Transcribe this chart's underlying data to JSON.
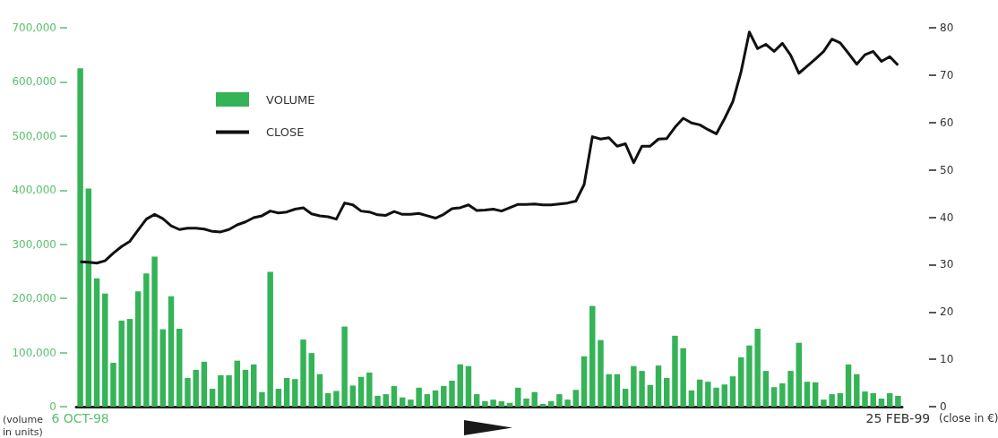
{
  "chart_data": {
    "type": "bar",
    "categories": [
      "6 OCT-98",
      null,
      null,
      null,
      null,
      null,
      null,
      null,
      null,
      null,
      null,
      null,
      null,
      null,
      null,
      null,
      null,
      null,
      null,
      null,
      null,
      null,
      null,
      null,
      null,
      null,
      null,
      null,
      null,
      null,
      null,
      null,
      null,
      null,
      null,
      null,
      null,
      null,
      null,
      null,
      null,
      null,
      null,
      null,
      null,
      null,
      null,
      null,
      null,
      null,
      null,
      null,
      null,
      null,
      null,
      null,
      null,
      null,
      null,
      null,
      null,
      null,
      null,
      null,
      null,
      null,
      null,
      null,
      null,
      null,
      null,
      null,
      null,
      null,
      null,
      null,
      null,
      null,
      null,
      null,
      null,
      null,
      null,
      null,
      null,
      null,
      null,
      null,
      null,
      null,
      null,
      null,
      null,
      null,
      null,
      null,
      null,
      null,
      null,
      "25 FEB-99"
    ],
    "series": [
      {
        "name": "VOLUME",
        "color": "#35b357",
        "values": [
          625000,
          403000,
          237000,
          209000,
          81000,
          159000,
          162000,
          213000,
          246000,
          277000,
          143000,
          204000,
          144000,
          53000,
          68000,
          83000,
          33000,
          58000,
          58000,
          85000,
          68000,
          78000,
          27000,
          249000,
          33000,
          53000,
          51000,
          124000,
          99000,
          60000,
          25000,
          29000,
          148000,
          39000,
          55000,
          63000,
          20000,
          23000,
          38000,
          17000,
          13000,
          35000,
          23000,
          30000,
          38000,
          48000,
          78000,
          75000,
          23000,
          10000,
          13000,
          10000,
          7000,
          35000,
          15000,
          27000,
          5000,
          10000,
          23000,
          13000,
          31000,
          93000,
          186000,
          123000,
          60000,
          60000,
          33000,
          75000,
          66000,
          40000,
          76000,
          53000,
          131000,
          108000,
          30000,
          50000,
          46000,
          35000,
          41000,
          56000,
          91000,
          113000,
          144000,
          66000,
          36000,
          43000,
          66000,
          118000,
          46000,
          45000,
          13000,
          23000,
          25000,
          78000,
          60000,
          28000,
          25000,
          15000,
          25000,
          20000
        ]
      },
      {
        "name": "CLOSE",
        "type": "line",
        "axis": "y2",
        "color": "#111111",
        "values": [
          30.6,
          30.5,
          30.3,
          30.8,
          32.4,
          33.8,
          34.9,
          37.3,
          39.6,
          40.6,
          39.7,
          38.2,
          37.4,
          37.7,
          37.7,
          37.5,
          37.0,
          36.9,
          37.4,
          38.4,
          39.0,
          39.9,
          40.3,
          41.3,
          40.9,
          41.1,
          41.7,
          42.0,
          40.7,
          40.3,
          40.1,
          39.6,
          43.0,
          42.6,
          41.3,
          41.1,
          40.5,
          40.4,
          41.2,
          40.6,
          40.6,
          40.8,
          40.3,
          39.8,
          40.6,
          41.8,
          42.0,
          42.6,
          41.4,
          41.5,
          41.7,
          41.3,
          42.0,
          42.7,
          42.7,
          42.8,
          42.6,
          42.6,
          42.8,
          43.0,
          43.4,
          46.9,
          57.0,
          56.5,
          56.8,
          55.0,
          55.5,
          51.5,
          55.0,
          55.0,
          56.5,
          56.6,
          59.0,
          60.9,
          59.9,
          59.5,
          58.5,
          57.6,
          60.8,
          64.4,
          70.7,
          79.1,
          75.6,
          76.5,
          75.0,
          76.7,
          74.2,
          70.4,
          71.9,
          73.4,
          75.0,
          77.6,
          76.8,
          74.6,
          72.3,
          74.3,
          75.0,
          72.9,
          73.9,
          72.1
        ]
      }
    ],
    "ylim": [
      0,
      700000
    ],
    "yticks": [
      {
        "value": 0,
        "label": "0"
      },
      {
        "value": 100000,
        "label": "100,000"
      },
      {
        "value": 200000,
        "label": "200,000"
      },
      {
        "value": 300000,
        "label": "300,000"
      },
      {
        "value": 400000,
        "label": "400,000"
      },
      {
        "value": 500000,
        "label": "500,000"
      },
      {
        "value": 600000,
        "label": "600,000"
      },
      {
        "value": 700000,
        "label": "700,000"
      }
    ],
    "y2lim": [
      0,
      80
    ],
    "y2ticks": [
      0,
      10,
      20,
      30,
      40,
      50,
      60,
      70,
      80
    ],
    "ylabel": "(volume\nin units)",
    "y2label": "(close in €)",
    "legend": "top left",
    "marker": "none",
    "grid": false
  }
}
